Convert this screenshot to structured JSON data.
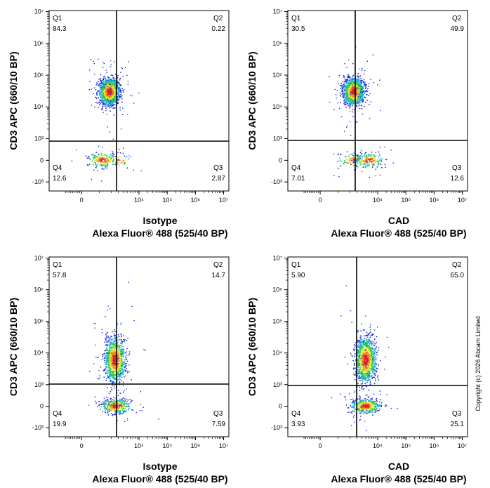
{
  "copyright": "Copyright (c) 2026 Abcam Limited",
  "chart_data": [
    {
      "type": "scatter",
      "xlabel": "Isotype",
      "xlabel2": "Alexa Fluor® 488  (525/40 BP)",
      "ylabel": "CD3 APC (660/10 BP)",
      "quadrants": {
        "Q1": "84.3",
        "Q2": "0.22",
        "Q3": "2.87",
        "Q4": "12.6"
      },
      "populations": [
        {
          "x": 1800,
          "y": 30000,
          "weight": 0.843
        },
        {
          "x": 1200,
          "y": 0,
          "weight": 0.126
        },
        {
          "x": 3000,
          "y": 0,
          "weight": 0.0287
        }
      ]
    },
    {
      "type": "scatter",
      "xlabel": "CAD",
      "xlabel2": "Alexa Fluor® 488  (525/40 BP)",
      "ylabel": "CD3 APC (660/10 BP)",
      "quadrants": {
        "Q1": "30.5",
        "Q2": "49.9",
        "Q3": "12.6",
        "Q4": "7.01"
      },
      "populations": [
        {
          "x": 2500,
          "y": 30000,
          "weight": 0.804
        },
        {
          "x": 2500,
          "y": 0,
          "weight": 0.07
        },
        {
          "x": 6000,
          "y": 0,
          "weight": 0.126
        }
      ]
    },
    {
      "type": "scatter",
      "xlabel": "Isotype",
      "xlabel2": "Alexa Fluor® 488  (525/40 BP)",
      "ylabel": "CD3 APC (660/10 BP)",
      "quadrants": {
        "Q1": "57.8",
        "Q2": "14.7",
        "Q3": "7.59",
        "Q4": "19.9"
      },
      "populations": [
        {
          "x": 2500,
          "y": 6000,
          "weight": 0.725
        },
        {
          "x": 2600,
          "y": 0,
          "weight": 0.275
        }
      ]
    },
    {
      "type": "scatter",
      "xlabel": "CAD",
      "xlabel2": "Alexa Fluor® 488  (525/40 BP)",
      "ylabel": "CD3 APC (660/10 BP)",
      "quadrants": {
        "Q1": "5.90",
        "Q2": "65.0",
        "Q3": "25.1",
        "Q4": "3.93"
      },
      "populations": [
        {
          "x": 5000,
          "y": 6000,
          "weight": 0.709
        },
        {
          "x": 5000,
          "y": 0,
          "weight": 0.291
        }
      ]
    }
  ],
  "axis": {
    "x_ticks": [
      "0",
      "10⁴",
      "10⁵",
      "10⁶",
      "10⁷"
    ],
    "y_ticks": [
      "10⁷",
      "10⁶",
      "10⁵",
      "10⁴",
      "10³",
      "0",
      "-10³"
    ]
  },
  "colors": {
    "gate": "#000000",
    "density": [
      "#1b2bd6",
      "#1fa6e0",
      "#2bd14a",
      "#e8e23a",
      "#f08a1c",
      "#e02020"
    ]
  }
}
